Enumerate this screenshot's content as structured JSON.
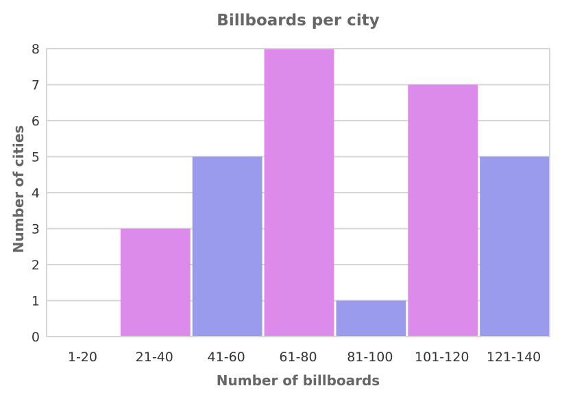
{
  "chart_data": {
    "type": "bar",
    "title": "Billboards per city",
    "xlabel": "Number of billboards",
    "ylabel": "Number of cities",
    "categories": [
      "1-20",
      "21-40",
      "41-60",
      "61-80",
      "81-100",
      "101-120",
      "121-140"
    ],
    "values": [
      0,
      3,
      5,
      8,
      1,
      7,
      5
    ],
    "bar_colors": [
      "#9b9bed",
      "#dd8bea",
      "#9b9bed",
      "#dd8bea",
      "#9b9bed",
      "#dd8bea",
      "#9b9bed"
    ],
    "ylim": [
      0,
      8
    ],
    "yticks": [
      "0",
      "1",
      "2",
      "3",
      "4",
      "5",
      "6",
      "7",
      "8"
    ],
    "grid": true
  }
}
